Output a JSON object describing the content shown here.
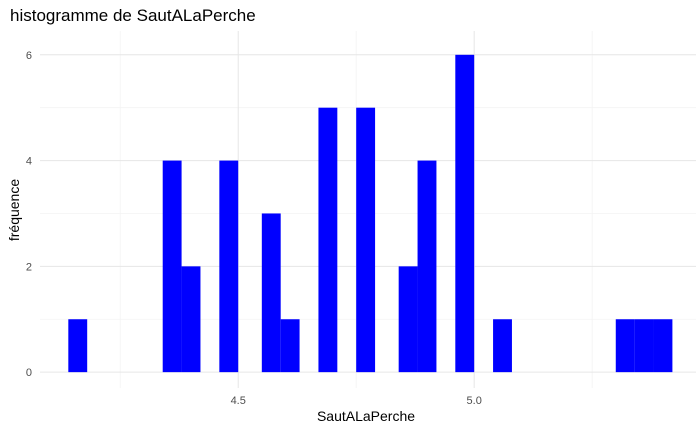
{
  "chart_data": {
    "type": "bar",
    "title": "histogramme de SautALaPerche",
    "xlabel": "SautALaPerche",
    "ylabel": "fréquence",
    "xlim": [
      4.08,
      5.47
    ],
    "ylim": [
      -0.3,
      6.45
    ],
    "bin_width": 0.04,
    "x_ticks": [
      4.5,
      5.0
    ],
    "x_tick_labels": [
      "4.5",
      "5.0"
    ],
    "y_ticks": [
      0,
      2,
      4,
      6
    ],
    "y_tick_labels": [
      "0",
      "2",
      "4",
      "6"
    ],
    "x_minor_gridlines": [
      4.25,
      4.75,
      5.25
    ],
    "y_minor_gridlines": [
      1,
      3,
      5
    ],
    "grid": true,
    "bar_color": "#0000ff",
    "bin_centers": [
      4.16,
      4.36,
      4.4,
      4.48,
      4.57,
      4.61,
      4.69,
      4.77,
      4.86,
      4.9,
      4.98,
      5.06,
      5.32,
      5.36,
      5.4
    ],
    "values": [
      1,
      4,
      2,
      4,
      3,
      1,
      5,
      5,
      2,
      4,
      6,
      1,
      1,
      1,
      1
    ]
  }
}
